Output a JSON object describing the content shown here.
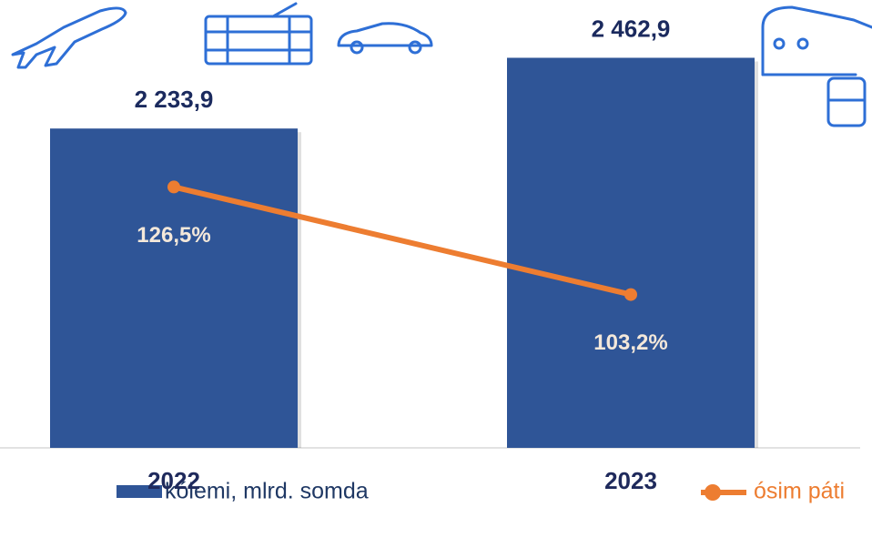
{
  "chart_data": {
    "type": "bar",
    "categories": [
      "2022",
      "2023"
    ],
    "series": [
      {
        "name": "kólemi, mlrd. somda",
        "type": "bar",
        "color": "#2f5597",
        "axis": "y",
        "values": [
          2233.9,
          2462.9
        ],
        "value_labels": [
          "2 233,9",
          "2 462,9"
        ]
      },
      {
        "name": "ósim páti",
        "type": "line",
        "color": "#ed7d31",
        "axis": "y2",
        "values": [
          126.5,
          103.2
        ],
        "value_labels": [
          "126,5%",
          "103,2%"
        ]
      }
    ],
    "ylim": [
      1200,
      2650
    ],
    "y2lim": [
      70,
      167
    ]
  }
}
